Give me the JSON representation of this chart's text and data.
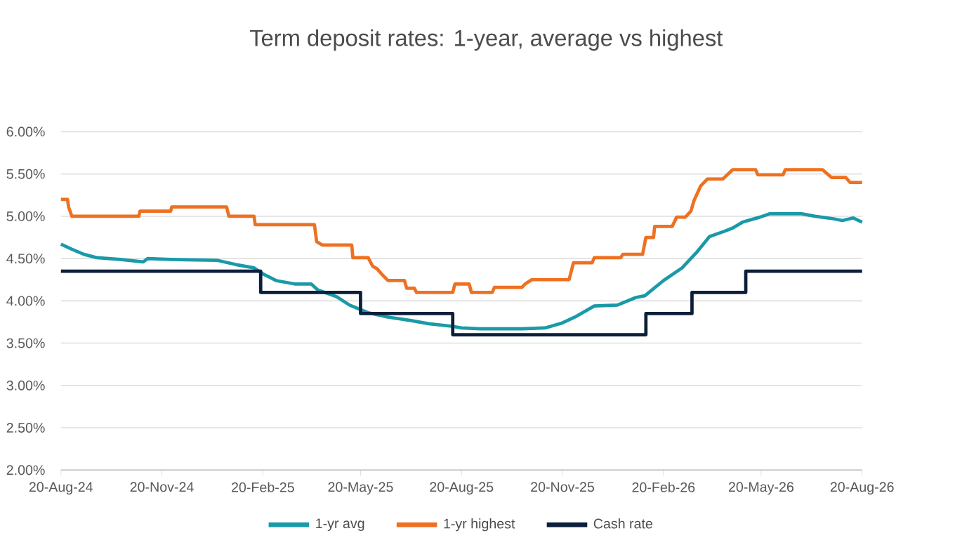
{
  "chart_data": {
    "type": "line",
    "title": "Term deposit rates: 1-year, average vs highest",
    "xlim": [
      "2024-08-20",
      "2026-08-20"
    ],
    "xticks": [
      {
        "value": "2024-08-20",
        "label": "20-Aug-24"
      },
      {
        "value": "2024-11-20",
        "label": "20-Nov-24"
      },
      {
        "value": "2025-02-20",
        "label": "20-Feb-25"
      },
      {
        "value": "2025-05-20",
        "label": "20-May-25"
      },
      {
        "value": "2025-08-20",
        "label": "20-Aug-25"
      },
      {
        "value": "2025-11-20",
        "label": "20-Nov-25"
      },
      {
        "value": "2026-02-20",
        "label": "20-Feb-26"
      },
      {
        "value": "2026-05-20",
        "label": "20-May-26"
      },
      {
        "value": "2026-08-20",
        "label": "20-Aug-26"
      }
    ],
    "ylim": [
      2,
      6
    ],
    "yticks": [
      {
        "value": 2,
        "label": "2.00%"
      },
      {
        "value": 2.5,
        "label": "2.50%"
      },
      {
        "value": 3,
        "label": "3.00%"
      },
      {
        "value": 3.5,
        "label": "3.50%"
      },
      {
        "value": 4,
        "label": "4.00%"
      },
      {
        "value": 4.5,
        "label": "4.50%"
      },
      {
        "value": 5,
        "label": "5.00%"
      },
      {
        "value": 5.5,
        "label": "5.50%"
      },
      {
        "value": 6,
        "label": "6.00%"
      }
    ],
    "grid": "y",
    "legend": "bottom",
    "marker": "none",
    "line_style": "solid",
    "series": [
      {
        "name": "1-yr avg",
        "color": "#1a9aa8",
        "x": [
          "2024-08-20",
          "2024-08-30",
          "2024-09-10",
          "2024-09-22",
          "2024-10-13",
          "2024-11-03",
          "2024-11-07",
          "2024-11-28",
          "2025-01-09",
          "2025-01-26",
          "2025-02-12",
          "2025-02-20",
          "2025-03-04",
          "2025-03-21",
          "2025-04-05",
          "2025-04-11",
          "2025-04-28",
          "2025-05-10",
          "2025-05-27",
          "2025-06-13",
          "2025-07-04",
          "2025-07-21",
          "2025-08-11",
          "2025-08-20",
          "2025-09-06",
          "2025-10-14",
          "2025-11-04",
          "2025-11-20",
          "2025-12-03",
          "2025-12-19",
          "2026-01-09",
          "2026-01-26",
          "2026-02-03",
          "2026-02-20",
          "2026-03-09",
          "2026-03-22",
          "2026-04-03",
          "2026-04-16",
          "2026-04-24",
          "2026-05-03",
          "2026-05-19",
          "2026-05-28",
          "2026-06-26",
          "2026-07-08",
          "2026-07-25",
          "2026-08-02",
          "2026-08-12",
          "2026-08-20"
        ],
        "values": [
          4.67,
          4.61,
          4.55,
          4.51,
          4.49,
          4.46,
          4.5,
          4.49,
          4.48,
          4.43,
          4.39,
          4.32,
          4.24,
          4.2,
          4.2,
          4.13,
          4.05,
          3.95,
          3.86,
          3.81,
          3.77,
          3.73,
          3.7,
          3.68,
          3.67,
          3.67,
          3.68,
          3.74,
          3.82,
          3.94,
          3.95,
          4.04,
          4.06,
          4.24,
          4.39,
          4.57,
          4.76,
          4.82,
          4.86,
          4.93,
          4.99,
          5.03,
          5.03,
          5.0,
          4.97,
          4.95,
          4.98,
          4.93
        ]
      },
      {
        "name": "1-yr highest",
        "color": "#ee7122",
        "x": [
          "2024-08-20",
          "2024-08-26",
          "2024-08-27",
          "2024-08-30",
          "2024-10-30",
          "2024-10-31",
          "2024-11-28",
          "2024-11-29",
          "2025-01-18",
          "2025-01-20",
          "2025-02-12",
          "2025-02-13",
          "2025-04-08",
          "2025-04-10",
          "2025-04-15",
          "2025-05-12",
          "2025-05-13",
          "2025-05-27",
          "2025-05-31",
          "2025-06-04",
          "2025-06-08",
          "2025-06-14",
          "2025-06-29",
          "2025-07-01",
          "2025-07-08",
          "2025-07-10",
          "2025-08-12",
          "2025-08-14",
          "2025-08-27",
          "2025-08-29",
          "2025-09-17",
          "2025-09-19",
          "2025-10-14",
          "2025-10-17",
          "2025-10-23",
          "2025-11-26",
          "2025-11-30",
          "2025-12-17",
          "2025-12-19",
          "2026-01-12",
          "2026-01-14",
          "2026-02-01",
          "2026-02-04",
          "2026-02-11",
          "2026-02-12",
          "2026-02-28",
          "2026-03-04",
          "2026-03-12",
          "2026-03-17",
          "2026-03-20",
          "2026-03-26",
          "2026-04-01",
          "2026-04-15",
          "2026-04-24",
          "2026-05-15",
          "2026-05-17",
          "2026-06-09",
          "2026-06-11",
          "2026-07-15",
          "2026-07-23",
          "2026-08-05",
          "2026-08-09",
          "2026-08-20"
        ],
        "values": [
          5.2,
          5.2,
          5.11,
          5.0,
          5.0,
          5.06,
          5.06,
          5.11,
          5.11,
          5.0,
          5.0,
          4.9,
          4.9,
          4.7,
          4.66,
          4.66,
          4.51,
          4.51,
          4.41,
          4.38,
          4.32,
          4.24,
          4.24,
          4.15,
          4.15,
          4.1,
          4.1,
          4.2,
          4.2,
          4.1,
          4.1,
          4.16,
          4.16,
          4.2,
          4.25,
          4.25,
          4.45,
          4.45,
          4.51,
          4.51,
          4.55,
          4.55,
          4.75,
          4.75,
          4.88,
          4.88,
          4.99,
          4.99,
          5.06,
          5.19,
          5.36,
          5.44,
          5.44,
          5.55,
          5.55,
          5.49,
          5.49,
          5.55,
          5.55,
          5.46,
          5.46,
          5.4,
          5.4
        ]
      },
      {
        "name": "Cash rate",
        "color": "#0c1f3a",
        "type": "step",
        "x": [
          "2024-08-20",
          "2025-02-18",
          "2025-05-20",
          "2025-08-12",
          "2026-02-04",
          "2026-03-18",
          "2026-05-06",
          "2026-08-20"
        ],
        "values": [
          4.35,
          4.1,
          3.85,
          3.6,
          3.85,
          4.1,
          4.35,
          4.35
        ]
      }
    ]
  }
}
